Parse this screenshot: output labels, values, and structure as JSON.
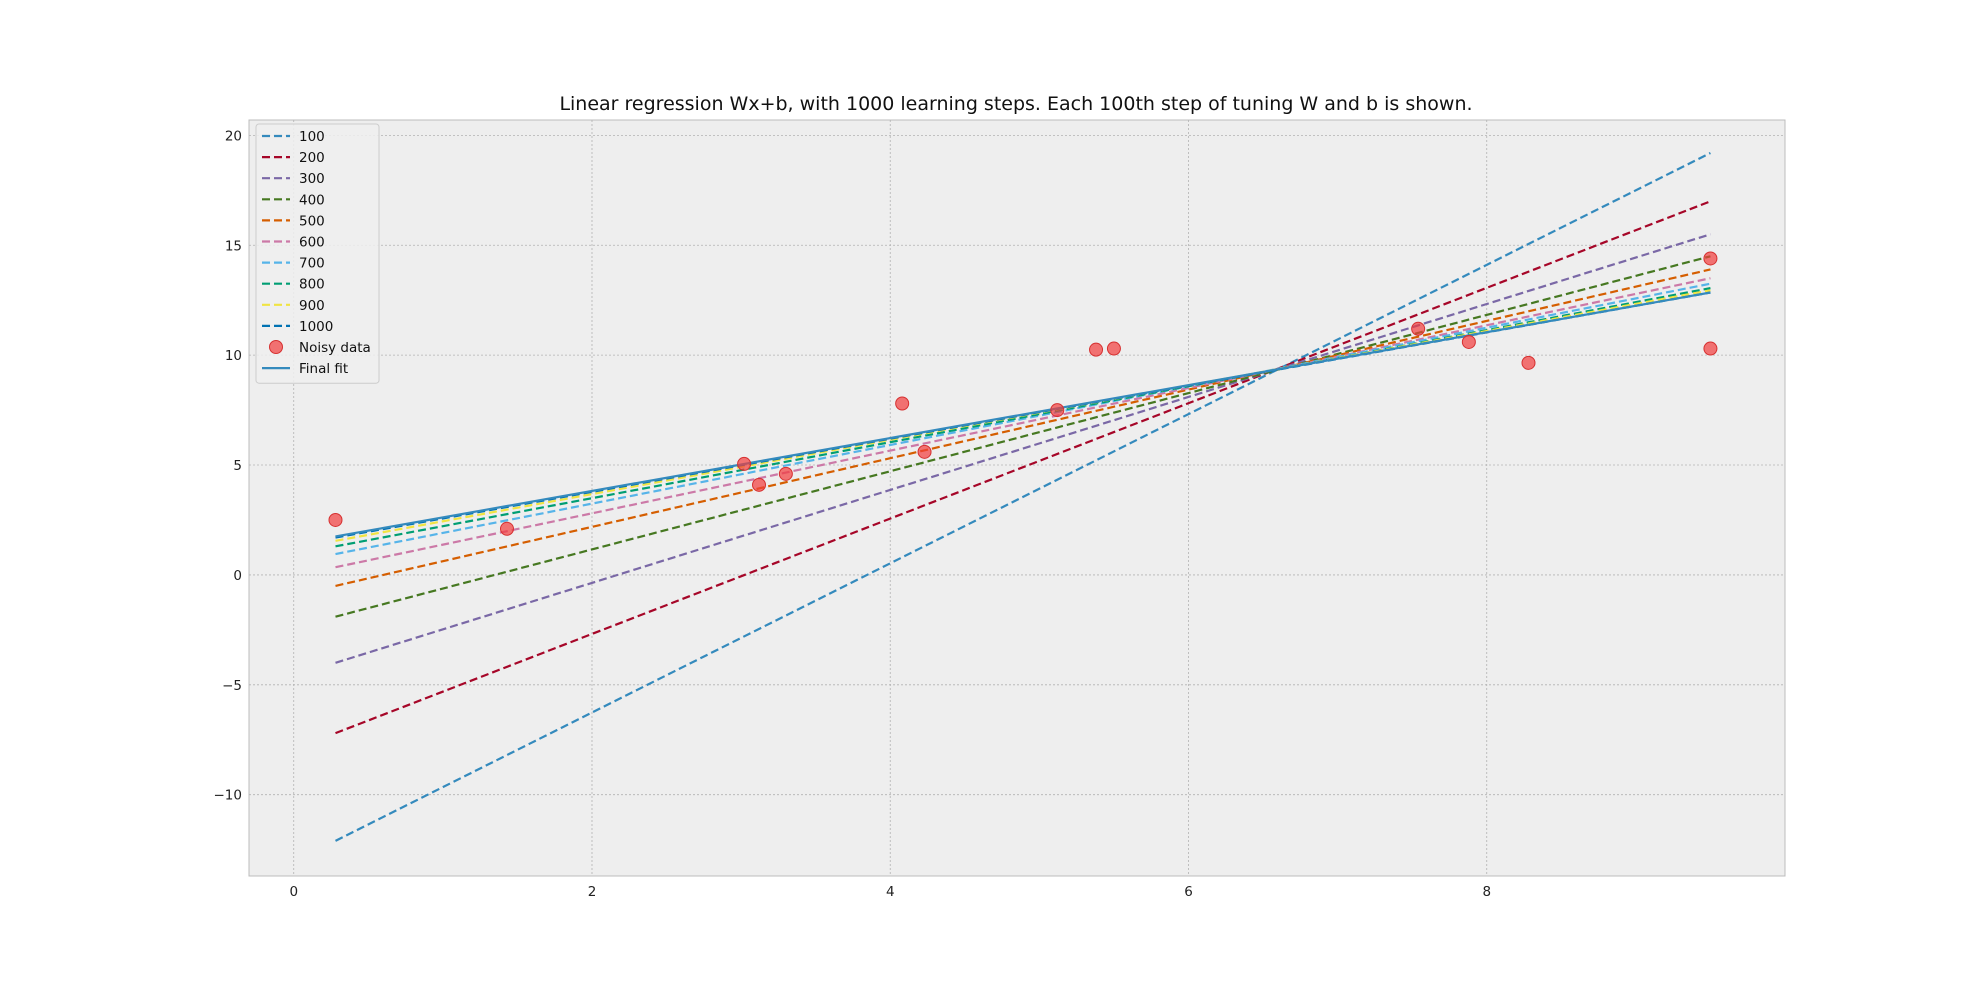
{
  "chart_data": {
    "type": "line",
    "title": "Linear regression Wx+b, with 1000 learning steps. Each 100th step of tuning W and b is shown.",
    "xlabel": "",
    "ylabel": "",
    "xlim": [
      -0.3,
      10.0
    ],
    "ylim": [
      -13.7,
      20.7
    ],
    "x_ticks": [
      0,
      2,
      4,
      6,
      8
    ],
    "y_ticks": [
      -10,
      -5,
      0,
      5,
      10,
      15,
      20
    ],
    "grid": true,
    "legend_position": "top-left",
    "x_range": [
      0.28,
      9.5
    ],
    "series": [
      {
        "name": "100",
        "style": "dashed",
        "color": "#348ABD",
        "y_start": -12.1,
        "y_end": 19.2
      },
      {
        "name": "200",
        "style": "dashed",
        "color": "#A60628",
        "y_start": -7.2,
        "y_end": 17.0
      },
      {
        "name": "300",
        "style": "dashed",
        "color": "#7A68A6",
        "y_start": -4.0,
        "y_end": 15.5
      },
      {
        "name": "400",
        "style": "dashed",
        "color": "#467821",
        "y_start": -1.9,
        "y_end": 14.5
      },
      {
        "name": "500",
        "style": "dashed",
        "color": "#D55E00",
        "y_start": -0.5,
        "y_end": 13.9
      },
      {
        "name": "600",
        "style": "dashed",
        "color": "#CC79A7",
        "y_start": 0.35,
        "y_end": 13.5
      },
      {
        "name": "700",
        "style": "dashed",
        "color": "#56B4E9",
        "y_start": 0.95,
        "y_end": 13.25
      },
      {
        "name": "800",
        "style": "dashed",
        "color": "#009E73",
        "y_start": 1.3,
        "y_end": 13.05
      },
      {
        "name": "900",
        "style": "dashed",
        "color": "#F0E442",
        "y_start": 1.55,
        "y_end": 12.95
      },
      {
        "name": "1000",
        "style": "dashed",
        "color": "#0072B2",
        "y_start": 1.7,
        "y_end": 12.85
      },
      {
        "name": "Final fit",
        "style": "solid",
        "color": "#348ABD",
        "y_start": 1.75,
        "y_end": 12.85
      }
    ],
    "scatter": {
      "name": "Noisy data",
      "color": "#F23C3C",
      "points": [
        [
          0.28,
          2.5
        ],
        [
          1.43,
          2.1
        ],
        [
          3.02,
          5.05
        ],
        [
          3.12,
          4.1
        ],
        [
          3.3,
          4.6
        ],
        [
          4.08,
          7.8
        ],
        [
          4.23,
          5.6
        ],
        [
          5.12,
          7.5
        ],
        [
          5.38,
          10.25
        ],
        [
          5.5,
          10.3
        ],
        [
          7.54,
          11.2
        ],
        [
          7.88,
          10.6
        ],
        [
          8.28,
          9.65
        ],
        [
          9.5,
          14.4
        ],
        [
          9.5,
          10.3
        ]
      ]
    }
  }
}
